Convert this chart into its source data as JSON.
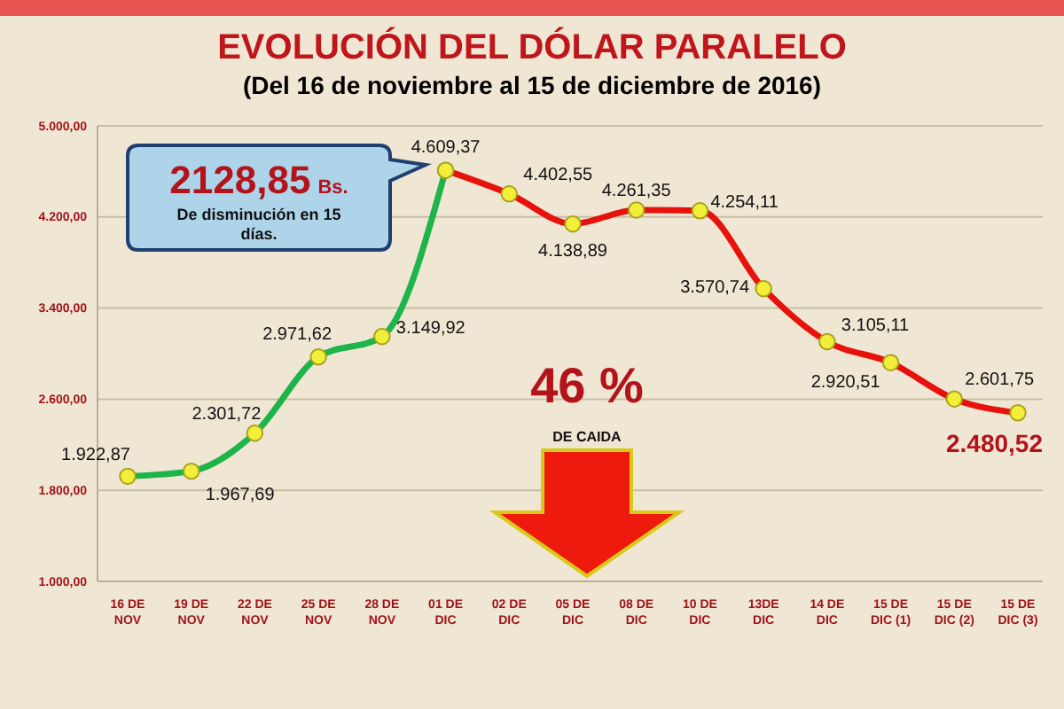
{
  "chart_data": {
    "type": "line",
    "title": "EVOLUCIÓN DEL DÓLAR PARALELO",
    "subtitle": "(Del 16 de noviembre al 15 de diciembre de 2016)",
    "categories": [
      "16 DE NOV",
      "19 DE NOV",
      "22 DE NOV",
      "25 DE NOV",
      "28 DE NOV",
      "01 DE DIC",
      "02 DE DIC",
      "05 DE DIC",
      "08 DE DIC",
      "10 DE DIC",
      "13DE DIC",
      "14 DE DIC",
      "15 DE DIC (1)",
      "15 DE DIC (2)",
      "15 DE DIC (3)"
    ],
    "series": [
      {
        "color": "#1db44a",
        "values": [
          1922.87,
          1967.69,
          2301.72,
          2971.62,
          3149.92,
          4609.37,
          null,
          null,
          null,
          null,
          null,
          null,
          null,
          null,
          null
        ],
        "value_labels": [
          "1.922,87",
          "1.967,69",
          "2.301,72",
          "2.971,62",
          "3.149,92",
          "4.609,37",
          null,
          null,
          null,
          null,
          null,
          null,
          null,
          null,
          null
        ]
      },
      {
        "color": "#e8120c",
        "values": [
          null,
          null,
          null,
          null,
          null,
          4609.37,
          4402.55,
          4138.89,
          4261.35,
          4254.11,
          3570.74,
          3105.11,
          2920.51,
          2601.75,
          2480.52
        ],
        "value_labels": [
          null,
          null,
          null,
          null,
          null,
          null,
          "4.402,55",
          "4.138,89",
          "4.261,35",
          "4.254,11",
          "3.570,74",
          "3.105,11",
          "2.920,51",
          "2.601,75",
          "2.480,52"
        ]
      }
    ],
    "ylim": [
      1000,
      5000
    ],
    "yticks": [
      {
        "value": 1000,
        "label": "1.000,00"
      },
      {
        "value": 1800,
        "label": "1.800,00"
      },
      {
        "value": 2600,
        "label": "2.600,00"
      },
      {
        "value": 3400,
        "label": "3.400,00"
      },
      {
        "value": 4200,
        "label": "4.200,00"
      },
      {
        "value": 5000,
        "label": "5.000,00"
      }
    ],
    "grid": "y",
    "marker": "circle",
    "line_style": "solid",
    "annotations": [
      "2128,85 Bs.",
      "De disminución en 15 días.",
      "46 %",
      "DE CAIDA"
    ]
  }
}
